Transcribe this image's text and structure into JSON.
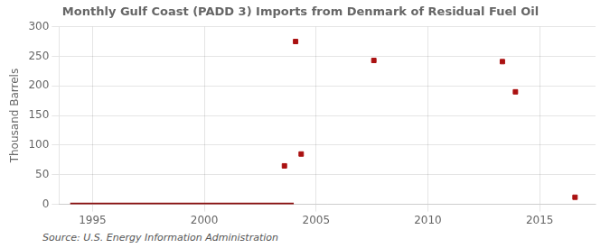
{
  "chart_data": {
    "type": "scatter",
    "title": "Monthly Gulf Coast (PADD 3) Imports from Denmark of Residual Fuel Oil",
    "ylabel": "Thousand Barrels",
    "source": "Source: U.S. Energy Information Administration",
    "series": [
      {
        "type": "line",
        "color": "#8b1010",
        "x": [
          1994.0,
          2004.0
        ],
        "values": [
          0,
          0
        ]
      },
      {
        "type": "scatter",
        "color": "#aa1111",
        "marker": "square",
        "x": [
          2003.583,
          2004.083,
          2004.333,
          2007.583,
          2013.333,
          2013.917,
          2016.583
        ],
        "values": [
          65,
          275,
          85,
          243,
          241,
          190,
          12
        ]
      }
    ],
    "xlim": [
      1993.5,
      2017.5
    ],
    "xticks": [
      1995,
      2000,
      2005,
      2010,
      2015
    ],
    "ylim": [
      0,
      300
    ],
    "yticks": [
      0,
      50,
      100,
      150,
      200,
      250,
      300
    ],
    "grid": true
  }
}
